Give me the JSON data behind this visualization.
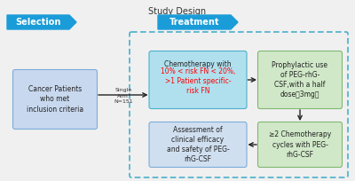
{
  "title": "Study Design",
  "title_fontsize": 7,
  "bg_color": "#f0f0f0",
  "selection_label": "Selection",
  "treatment_label": "Treatment",
  "box1_color": "#c8d8ee",
  "box1_border": "#7aadda",
  "box2_color": "#b0e0ee",
  "box2_border": "#4ab0cc",
  "box3_color": "#d0e8c8",
  "box3_border": "#80b870",
  "box4_color": "#d0e8c8",
  "box4_border": "#80b870",
  "box5_color": "#d0dff0",
  "box5_border": "#7aadda",
  "arrow_color": "#222222",
  "dashed_rect_color": "#4ab0cc",
  "selection_bg": "#1a9cd8",
  "treatment_bg": "#1a9cd8",
  "badge_text_color": "#ffffff"
}
